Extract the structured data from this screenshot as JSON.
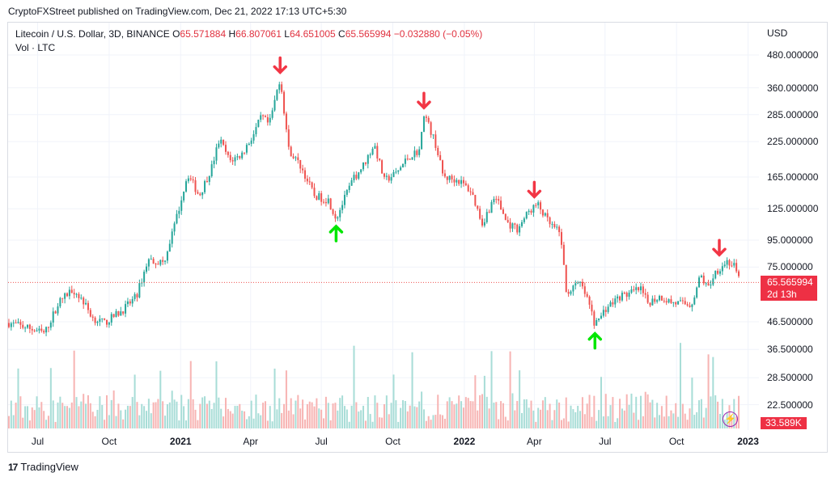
{
  "header": {
    "publisher": "CryptoFXStreet published on TradingView.com, Dec 21, 2022 17:13 UTC+5:30"
  },
  "legend": {
    "symbol": "Litecoin / U.S. Dollar, 3D, BINANCE",
    "open_label": "O",
    "open": "65.571884",
    "high_label": "H",
    "high": "66.807061",
    "low_label": "L",
    "low": "64.651005",
    "close_label": "C",
    "close": "65.565994",
    "change": "−0.032880 (−0.05%)",
    "volume": "Vol · LTC"
  },
  "price_tag": {
    "price": "65.565994",
    "countdown": "2d 13h"
  },
  "volume_tag": "33.589K",
  "footer": {
    "brand": "TradingView",
    "logo": "17"
  },
  "colors": {
    "up": "#26a69a",
    "down": "#ef5350",
    "arrow_up": "#00e600",
    "arrow_down": "#f23645",
    "last_price_line": "#ef5350"
  },
  "chart_data": {
    "type": "candlestick",
    "title": "Litecoin / U.S. Dollar, 3D, BINANCE",
    "currency": "USD",
    "y_scale": "log",
    "y_ticks": [
      "480.000000",
      "360.000000",
      "285.000000",
      "225.000000",
      "165.000000",
      "125.000000",
      "95.000000",
      "75.000000",
      "46.500000",
      "36.500000",
      "28.500000",
      "22.500000"
    ],
    "x_ticks": [
      {
        "label": "Jul",
        "bold": false
      },
      {
        "label": "Oct",
        "bold": false
      },
      {
        "label": "2021",
        "bold": true
      },
      {
        "label": "Apr",
        "bold": false
      },
      {
        "label": "Jul",
        "bold": false
      },
      {
        "label": "Oct",
        "bold": false
      },
      {
        "label": "2022",
        "bold": true
      },
      {
        "label": "Apr",
        "bold": false
      },
      {
        "label": "Jul",
        "bold": false
      },
      {
        "label": "Oct",
        "bold": false
      },
      {
        "label": "2023",
        "bold": true
      }
    ],
    "x_range": [
      "2020-05-24",
      "2023-01-15"
    ],
    "last_price": 65.565994,
    "price_path": [
      [
        "2020-05-25",
        46
      ],
      [
        "2020-06-20",
        44
      ],
      [
        "2020-07-10",
        42
      ],
      [
        "2020-07-28",
        55
      ],
      [
        "2020-08-15",
        62
      ],
      [
        "2020-08-28",
        56
      ],
      [
        "2020-09-10",
        48
      ],
      [
        "2020-09-25",
        46
      ],
      [
        "2020-10-20",
        52
      ],
      [
        "2020-11-05",
        58
      ],
      [
        "2020-11-20",
        80
      ],
      [
        "2020-12-10",
        78
      ],
      [
        "2020-12-25",
        110
      ],
      [
        "2021-01-10",
        170
      ],
      [
        "2021-01-25",
        140
      ],
      [
        "2021-02-10",
        180
      ],
      [
        "2021-02-20",
        230
      ],
      [
        "2021-03-05",
        190
      ],
      [
        "2021-03-20",
        200
      ],
      [
        "2021-04-05",
        240
      ],
      [
        "2021-04-15",
        280
      ],
      [
        "2021-04-25",
        260
      ],
      [
        "2021-05-09",
        395
      ],
      [
        "2021-05-20",
        210
      ],
      [
        "2021-06-05",
        180
      ],
      [
        "2021-06-22",
        140
      ],
      [
        "2021-07-10",
        135
      ],
      [
        "2021-07-20",
        115
      ],
      [
        "2021-08-10",
        160
      ],
      [
        "2021-08-25",
        185
      ],
      [
        "2021-09-07",
        220
      ],
      [
        "2021-09-20",
        160
      ],
      [
        "2021-10-05",
        170
      ],
      [
        "2021-10-20",
        195
      ],
      [
        "2021-11-05",
        210
      ],
      [
        "2021-11-10",
        290
      ],
      [
        "2021-11-25",
        220
      ],
      [
        "2021-12-05",
        165
      ],
      [
        "2021-12-25",
        160
      ],
      [
        "2022-01-10",
        145
      ],
      [
        "2022-01-24",
        110
      ],
      [
        "2022-02-10",
        140
      ],
      [
        "2022-02-25",
        110
      ],
      [
        "2022-03-10",
        105
      ],
      [
        "2022-03-25",
        122
      ],
      [
        "2022-04-05",
        130
      ],
      [
        "2022-04-20",
        110
      ],
      [
        "2022-05-05",
        100
      ],
      [
        "2022-05-12",
        60
      ],
      [
        "2022-05-30",
        65
      ],
      [
        "2022-06-10",
        55
      ],
      [
        "2022-06-18",
        45
      ],
      [
        "2022-07-01",
        52
      ],
      [
        "2022-07-20",
        58
      ],
      [
        "2022-08-05",
        60
      ],
      [
        "2022-08-15",
        62
      ],
      [
        "2022-08-25",
        55
      ],
      [
        "2022-09-10",
        58
      ],
      [
        "2022-09-25",
        55
      ],
      [
        "2022-10-20",
        54
      ],
      [
        "2022-11-01",
        70
      ],
      [
        "2022-11-10",
        62
      ],
      [
        "2022-11-20",
        72
      ],
      [
        "2022-12-05",
        79
      ],
      [
        "2022-12-15",
        75
      ],
      [
        "2022-12-21",
        65.57
      ]
    ],
    "markers": [
      {
        "type": "down",
        "date": "2021-05-09",
        "price": 395
      },
      {
        "type": "up",
        "date": "2021-07-20",
        "price": 115
      },
      {
        "type": "down",
        "date": "2021-11-10",
        "price": 290
      },
      {
        "type": "down",
        "date": "2022-04-01",
        "price": 133
      },
      {
        "type": "up",
        "date": "2022-06-18",
        "price": 45
      },
      {
        "type": "down",
        "date": "2022-11-25",
        "price": 80
      }
    ]
  }
}
